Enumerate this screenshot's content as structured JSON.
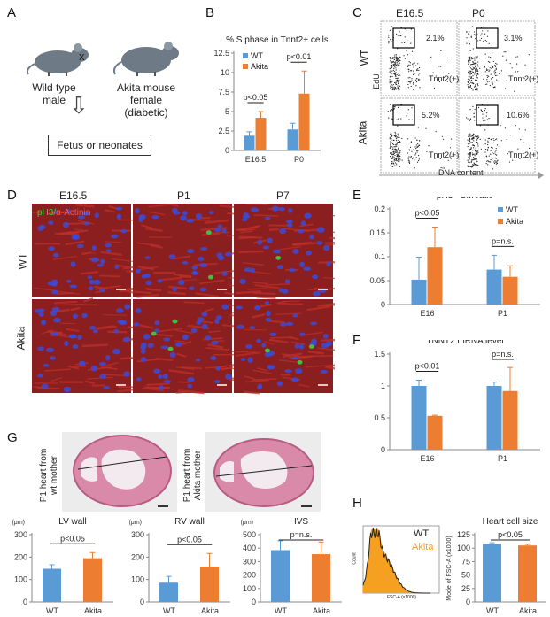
{
  "colors": {
    "wt": "#5b9bd5",
    "akita": "#ed7d31",
    "micro_bg": "#8b1f1f",
    "nuclei": "#3b4bd8",
    "ph3": "#40c040",
    "he_pink": "#d88aa8"
  },
  "panelA": {
    "letter": "A",
    "left_label_1": "Wild type",
    "left_label_2": "male",
    "cross": "x",
    "right_label_1": "Akita mouse",
    "right_label_2": "female",
    "right_label_3": "(diabetic)",
    "arrow": "⇩",
    "box_label": "Fetus or neonates"
  },
  "panelB": {
    "letter": "B"
  },
  "panelC": {
    "letter": "C",
    "col1": "E16.5",
    "col2": "P0",
    "row1": "WT",
    "row2": "Akita",
    "yaxis": "EdU",
    "xaxis": "DNA content",
    "pct": [
      "2.1%",
      "3.1%",
      "5.2%",
      "10.6%"
    ],
    "gate_label": "Tnnt2(+)"
  },
  "panelD": {
    "letter": "D",
    "cols": [
      "E16.5",
      "P1",
      "P7"
    ],
    "row1": "WT",
    "row2": "Akita",
    "stain_a": "pH3/",
    "stain_b": "α-Actinin"
  },
  "panelE": {
    "letter": "E"
  },
  "panelF": {
    "letter": "F"
  },
  "panelG": {
    "letter": "G",
    "heart1_l1": "P1 heart from",
    "heart1_l2": "wt mother",
    "heart2_l1": "P1 heart from",
    "heart2_l2": "Akita mother"
  },
  "panelH": {
    "letter": "H",
    "hist_wt": "WT",
    "hist_akita": "Akita",
    "hist_y": "Count",
    "hist_x": "FSC-A (x1000)"
  },
  "chart_data": [
    {
      "id": "B",
      "type": "bar",
      "title": "% S phase in Tnnt2+ cells",
      "categories": [
        "E16.5",
        "P0"
      ],
      "series": [
        {
          "name": "WT",
          "values": [
            1.9,
            2.7
          ],
          "err": [
            0.5,
            0.8
          ]
        },
        {
          "name": "Akita",
          "values": [
            4.2,
            7.3
          ],
          "err": [
            0.8,
            2.9
          ]
        }
      ],
      "ylim": [
        0,
        12.5
      ],
      "yticks": [
        "0",
        "2.5",
        "5",
        "7.5",
        "10",
        "12.5"
      ],
      "annotations": [
        "p<0.05",
        "p<0.01"
      ],
      "legend": "top-left"
    },
    {
      "id": "E",
      "type": "bar",
      "title": "pH3⁺ CM ratio",
      "categories": [
        "E16",
        "P1"
      ],
      "series": [
        {
          "name": "WT",
          "values": [
            0.052,
            0.073
          ],
          "err": [
            0.047,
            0.03
          ]
        },
        {
          "name": "Akita",
          "values": [
            0.12,
            0.058
          ],
          "err": [
            0.042,
            0.023
          ]
        }
      ],
      "ylim": [
        0,
        0.2
      ],
      "yticks": [
        "0",
        "0.05",
        "0.1",
        "0.15",
        "0.2"
      ],
      "annotations": [
        "p<0.05",
        "p=n.s."
      ],
      "legend": "top-right"
    },
    {
      "id": "F",
      "type": "bar",
      "title": "TNNT2 mRNA level",
      "categories": [
        "E16",
        "P1"
      ],
      "series": [
        {
          "name": "WT",
          "values": [
            1.0,
            1.0
          ],
          "err": [
            0.09,
            0.06
          ]
        },
        {
          "name": "Akita",
          "values": [
            0.53,
            0.92
          ],
          "err": [
            0.01,
            0.37
          ]
        }
      ],
      "ylim": [
        0,
        1.5
      ],
      "yticks": [
        "0",
        "0.5",
        "1",
        "1.5"
      ],
      "annotations": [
        "p<0.01",
        "p=n.s."
      ]
    },
    {
      "id": "G1",
      "type": "bar",
      "title": "LV wall",
      "unit": "(μm)",
      "categories": [
        "WT",
        "Akita"
      ],
      "values": [
        148,
        195
      ],
      "err": [
        18,
        25
      ],
      "ylim": [
        0,
        300
      ],
      "yticks": [
        "0",
        "100",
        "200",
        "300"
      ],
      "annotations": [
        "p<0.05"
      ]
    },
    {
      "id": "G2",
      "type": "bar",
      "title": "RV wall",
      "unit": "(μm)",
      "categories": [
        "WT",
        "Akita"
      ],
      "values": [
        86,
        158
      ],
      "err": [
        28,
        58
      ],
      "ylim": [
        0,
        300
      ],
      "yticks": [
        "0",
        "100",
        "200",
        "300"
      ],
      "annotations": [
        "p<0.05"
      ]
    },
    {
      "id": "G3",
      "type": "bar",
      "title": "IVS",
      "unit": "(μm)",
      "categories": [
        "WT",
        "Akita"
      ],
      "values": [
        385,
        355
      ],
      "err": [
        70,
        90
      ],
      "ylim": [
        0,
        500
      ],
      "yticks": [
        "0",
        "100",
        "200",
        "300",
        "400",
        "500"
      ],
      "annotations": [
        "p=n.s."
      ]
    },
    {
      "id": "H",
      "type": "bar",
      "title": "Heart cell size",
      "ylabel": "Mode of FSC-A (x1000)",
      "categories": [
        "WT",
        "Akita"
      ],
      "values": [
        108,
        105
      ],
      "err": [
        2,
        2
      ],
      "ylim": [
        0,
        125
      ],
      "yticks": [
        "0",
        "25",
        "50",
        "75",
        "100",
        "125"
      ],
      "annotations": [
        "p<0.05"
      ]
    }
  ]
}
